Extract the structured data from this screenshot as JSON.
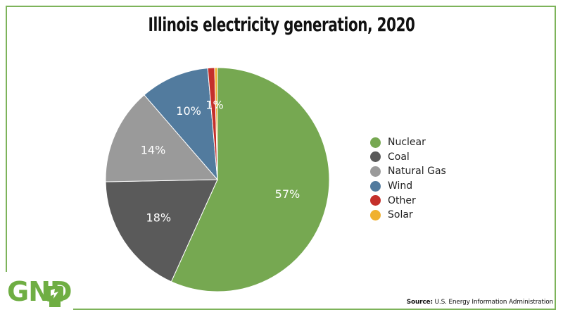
{
  "chart_data": {
    "type": "pie",
    "title": "Illinois electricity generation, 2020",
    "slices": [
      {
        "label": "Nuclear",
        "value": 57,
        "display": "57%",
        "color": "#76a851"
      },
      {
        "label": "Coal",
        "value": 18,
        "display": "18%",
        "color": "#5a5a5a"
      },
      {
        "label": "Natural Gas",
        "value": 14,
        "display": "14%",
        "color": "#9a9a9a"
      },
      {
        "label": "Wind",
        "value": 10,
        "display": "10%",
        "color": "#527b9e"
      },
      {
        "label": "Other",
        "value": 1,
        "display": "1%",
        "color": "#c4302b"
      },
      {
        "label": "Solar",
        "value": 0.4,
        "display": "",
        "color": "#f0b12f"
      }
    ],
    "legend_position": "right"
  },
  "branding": {
    "logo_text": "GND",
    "logo_icon": "raised-fist-icon",
    "accent_color": "#6fae43"
  },
  "source": {
    "label": "Source:",
    "text": "U.S. Energy Information Administration"
  }
}
